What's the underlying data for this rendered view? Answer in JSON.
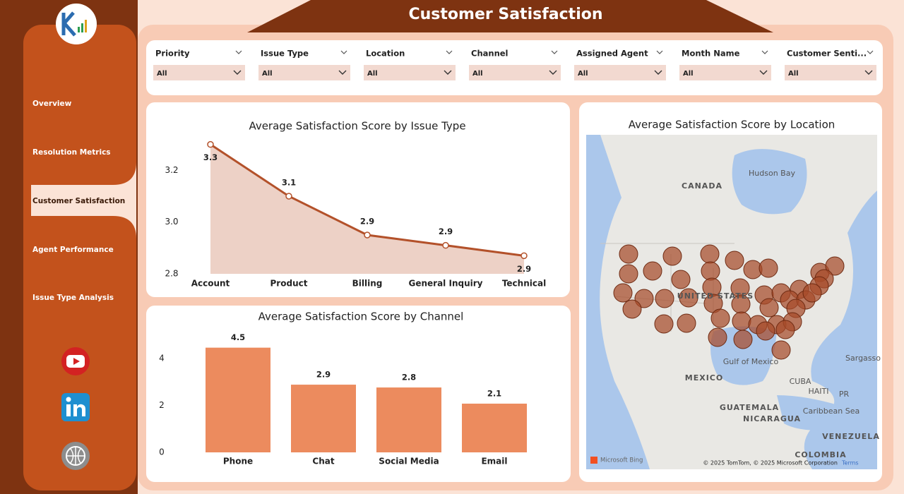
{
  "header": {
    "title": "Customer Satisfaction"
  },
  "nav": [
    "Overview",
    "Resolution Metrics",
    "Customer Satisfaction",
    "Agent Performance",
    "Issue Type Analysis"
  ],
  "filters": [
    {
      "label": "Priority",
      "value": "All"
    },
    {
      "label": "Issue Type",
      "value": "All"
    },
    {
      "label": "Location",
      "value": "All"
    },
    {
      "label": "Channel",
      "value": "All"
    },
    {
      "label": "Assigned Agent",
      "value": "All"
    },
    {
      "label": "Month Name",
      "value": "All"
    },
    {
      "label": "Customer Senti...",
      "value": "All"
    }
  ],
  "chart_data": [
    {
      "type": "line",
      "title": "Average Satisfaction Score by Issue Type",
      "categories": [
        "Account",
        "Product",
        "Billing",
        "General Inquiry",
        "Technical"
      ],
      "values": [
        3.3,
        3.1,
        2.95,
        2.91,
        2.87
      ],
      "value_labels": [
        "3.3",
        "3.1",
        "2.9",
        "2.9",
        "2.9"
      ],
      "color": "#b3512a",
      "area": true,
      "area_color": "#edd1c6",
      "ylim": [
        2.8,
        3.34
      ],
      "yticks": [
        2.8,
        {
          "value": 3,
          "label": "3.0"
        },
        3.2
      ]
    },
    {
      "type": "bar",
      "title": "Average Satisfaction Score by Channel",
      "categories": [
        "Phone",
        "Chat",
        "Social Media",
        "Email"
      ],
      "values": [
        4.47,
        2.89,
        2.77,
        2.08
      ],
      "value_labels": [
        "4.5",
        "2.9",
        "2.8",
        "2.1"
      ],
      "color": "#ec8b5e",
      "ylim": [
        0,
        4.7
      ],
      "yticks": [
        0,
        2,
        4
      ]
    }
  ],
  "map": {
    "title": "Average Satisfaction Score by Location",
    "labels": [
      "CANADA",
      "Hudson Bay",
      "UNITED STATES",
      "Gulf of Mexico",
      "MEXICO",
      "CUBA",
      "HAITI",
      "PR",
      "Sargasso",
      "GUATEMALA",
      "Caribbean Sea",
      "NICARAGUA",
      "VENEZUELA",
      "COLOMBIA"
    ],
    "brand": "Microsoft Bing",
    "attribution": "© 2025 TomTom, © 2025 Microsoft Corporation",
    "terms": "Terms"
  }
}
